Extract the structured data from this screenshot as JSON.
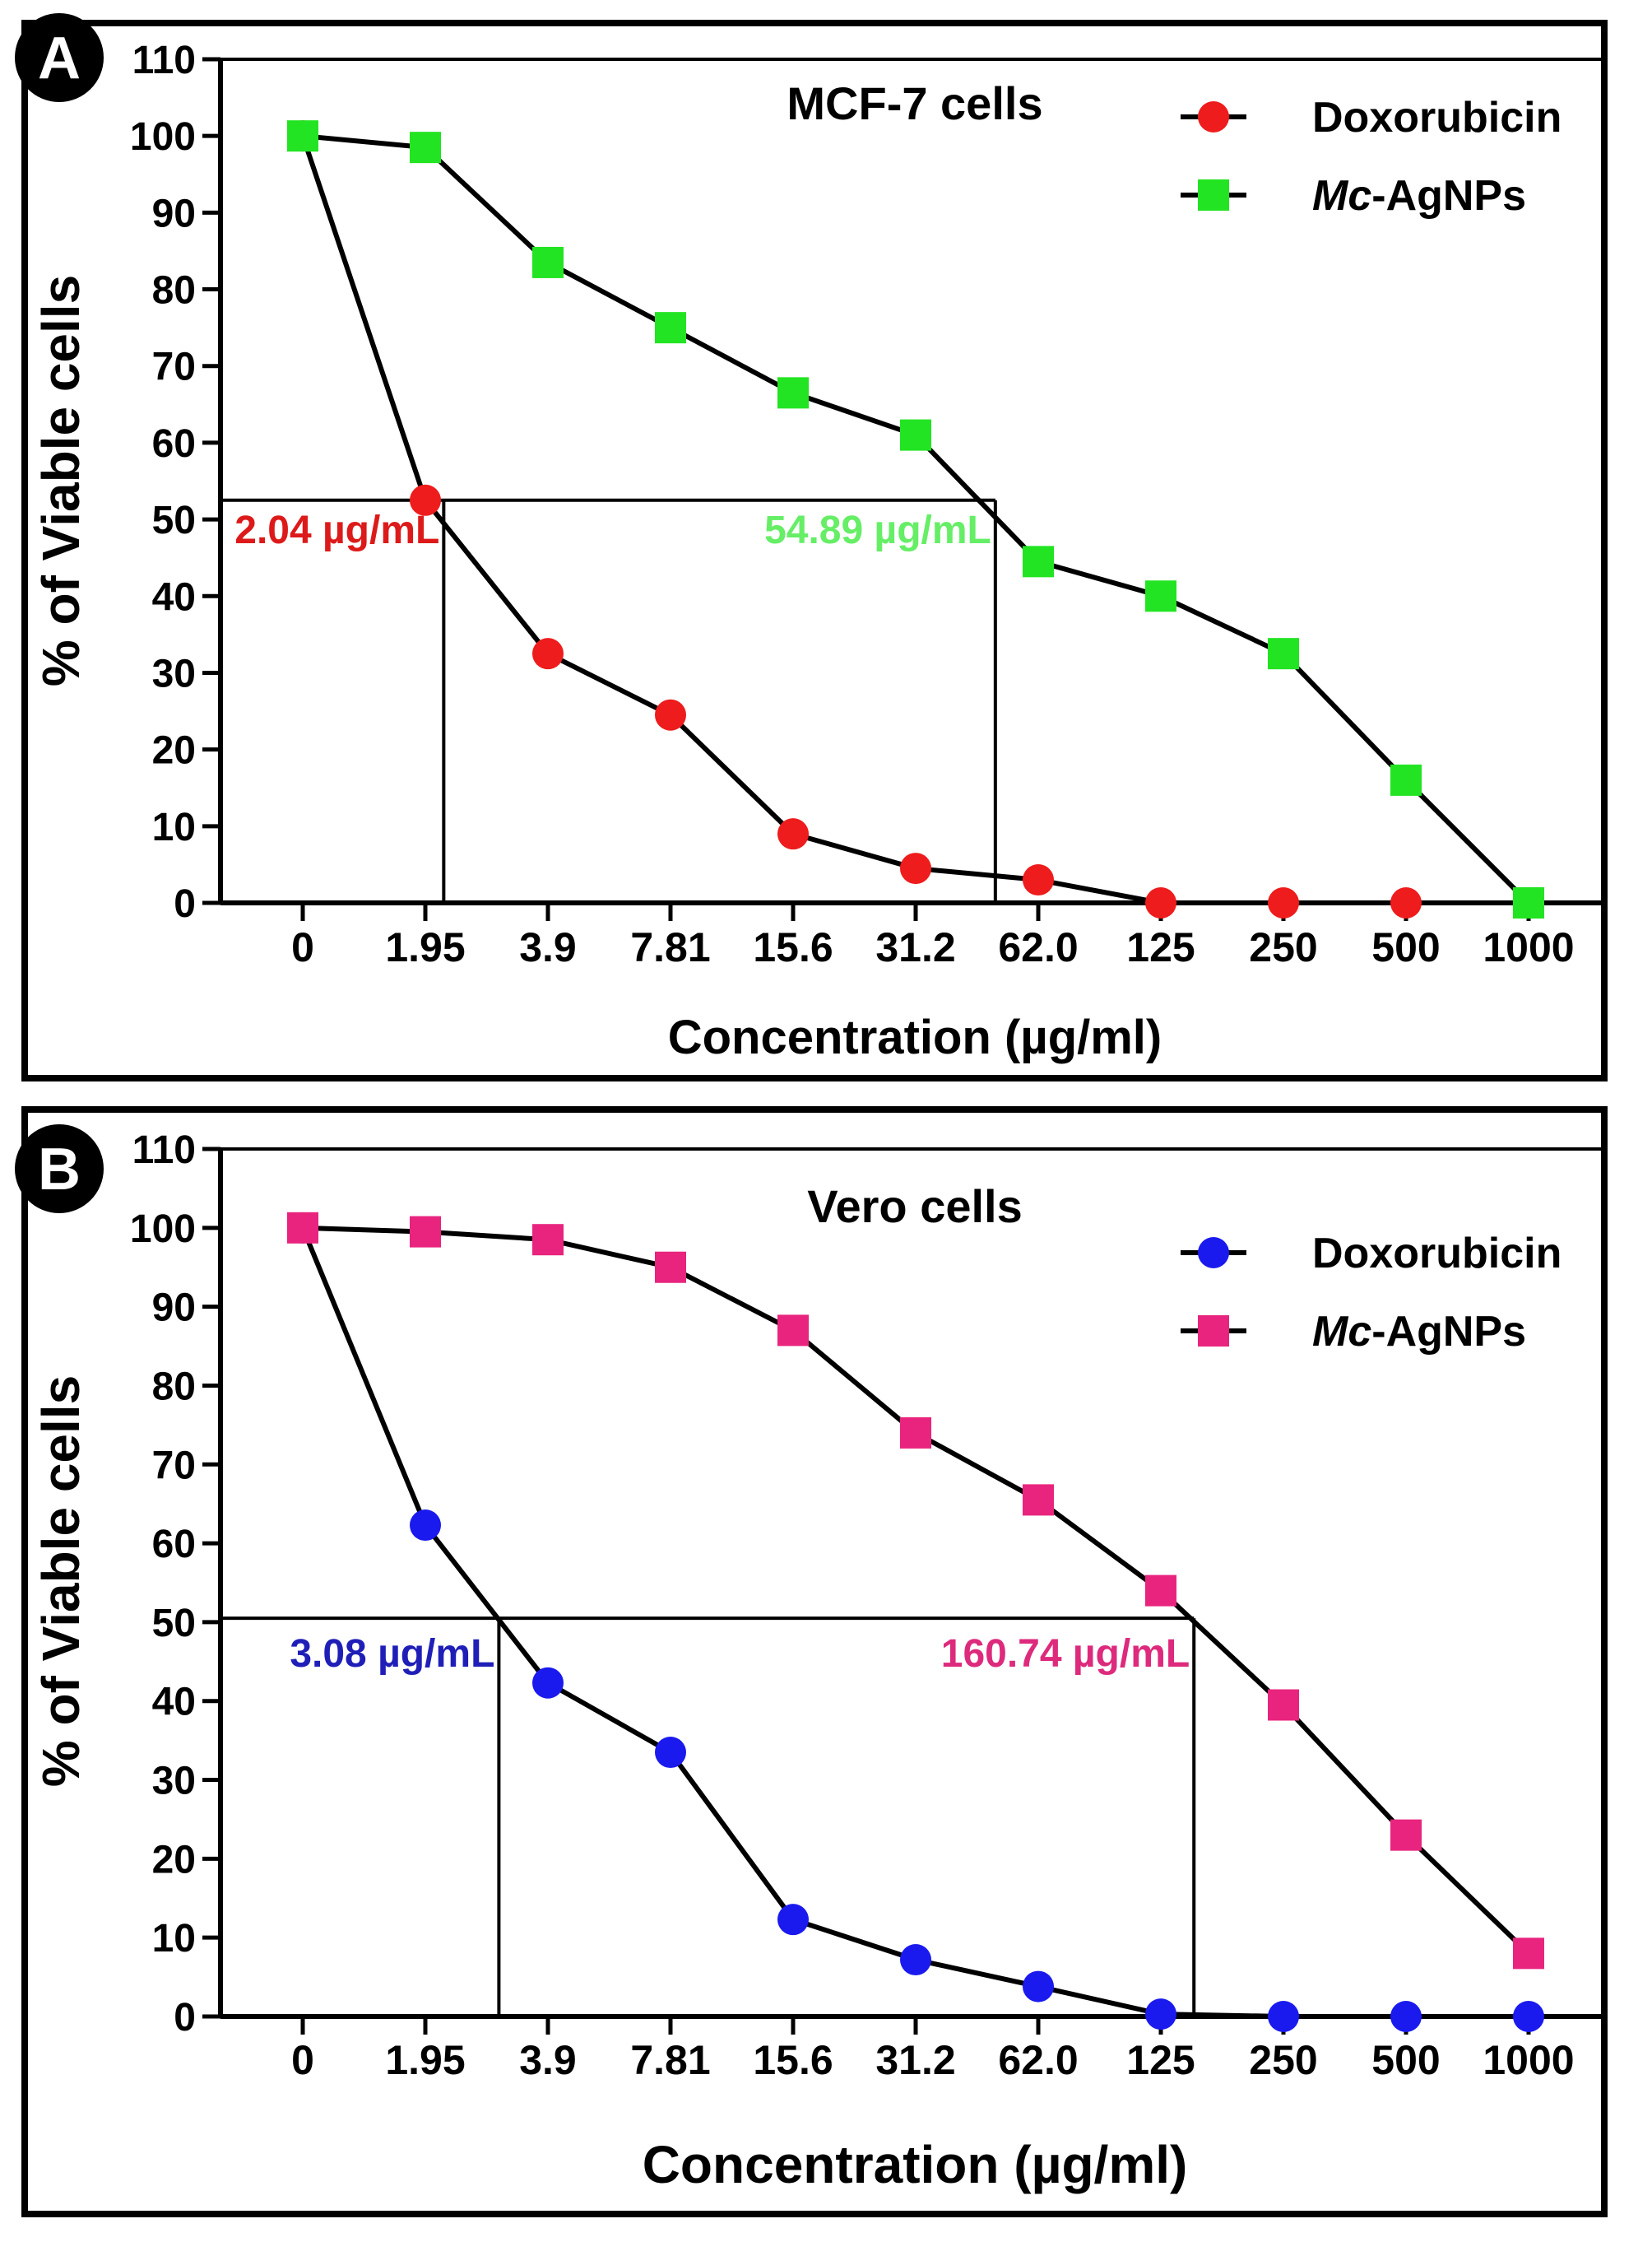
{
  "chart_data": [
    {
      "panel_label": "A",
      "type": "line",
      "title": "MCF-7 cells",
      "xlabel": "Concentration (µg/ml)",
      "ylabel": "% of Viable cells",
      "categories": [
        "0",
        "1.95",
        "3.9",
        "7.81",
        "15.6",
        "31.2",
        "62.0",
        "125",
        "250",
        "500",
        "1000"
      ],
      "yticks": [
        "0",
        "10",
        "20",
        "30",
        "40",
        "50",
        "60",
        "70",
        "80",
        "90",
        "100",
        "110"
      ],
      "ylim": [
        0,
        110
      ],
      "legend_position": "top-right",
      "series": [
        {
          "name": "Doxorubicin",
          "legend_prefix": "",
          "legend_suffix": "Doxorubicin",
          "marker": "circle",
          "color": "#ee1c1c",
          "values": [
            100,
            52.5,
            32.5,
            24.5,
            9,
            4.5,
            3,
            0,
            0,
            0,
            0
          ]
        },
        {
          "name": "Mc-AgNPs",
          "legend_prefix": "Mc",
          "legend_suffix": "-AgNPs",
          "marker": "square",
          "color": "#22e422",
          "values": [
            100,
            98.5,
            83.5,
            75,
            66.5,
            61,
            44.5,
            40,
            32.5,
            16,
            0
          ]
        }
      ],
      "ic50_annotations": [
        {
          "text": "2.04 µg/mL",
          "color": "#dd1a1a",
          "x_index": 1.15,
          "y": 52.5
        },
        {
          "text": "54.89 µg/mL",
          "color": "#66ee66",
          "x_index": 5.65,
          "y": 52.5
        }
      ]
    },
    {
      "panel_label": "B",
      "type": "line",
      "title": "Vero cells",
      "xlabel": "Concentration (µg/ml)",
      "ylabel": "% of Viable cells",
      "categories": [
        "0",
        "1.95",
        "3.9",
        "7.81",
        "15.6",
        "31.2",
        "62.0",
        "125",
        "250",
        "500",
        "1000"
      ],
      "yticks": [
        "0",
        "10",
        "20",
        "30",
        "40",
        "50",
        "60",
        "70",
        "80",
        "90",
        "100",
        "110"
      ],
      "ylim": [
        0,
        110
      ],
      "legend_position": "top-right",
      "series": [
        {
          "name": "Doxorubicin",
          "legend_prefix": "",
          "legend_suffix": "Doxorubicin",
          "marker": "circle",
          "color": "#1a1aee",
          "values": [
            100,
            62.3,
            42.3,
            33.5,
            12.3,
            7.2,
            3.8,
            0.3,
            0,
            0,
            0
          ]
        },
        {
          "name": "Mc-AgNPs",
          "legend_prefix": "Mc",
          "legend_suffix": "-AgNPs",
          "marker": "square",
          "color": "#e8247e",
          "values": [
            100,
            99.5,
            98.5,
            95,
            87,
            74,
            65.5,
            54,
            39.5,
            23,
            8
          ]
        }
      ],
      "ic50_annotations": [
        {
          "text": "3.08 µg/mL",
          "color": "#1f1fb8",
          "x_index": 1.6,
          "y": 50.5
        },
        {
          "text": "160.74 µg/mL",
          "color": "#dd2a7c",
          "x_index": 7.27,
          "y": 50.5
        }
      ]
    }
  ]
}
